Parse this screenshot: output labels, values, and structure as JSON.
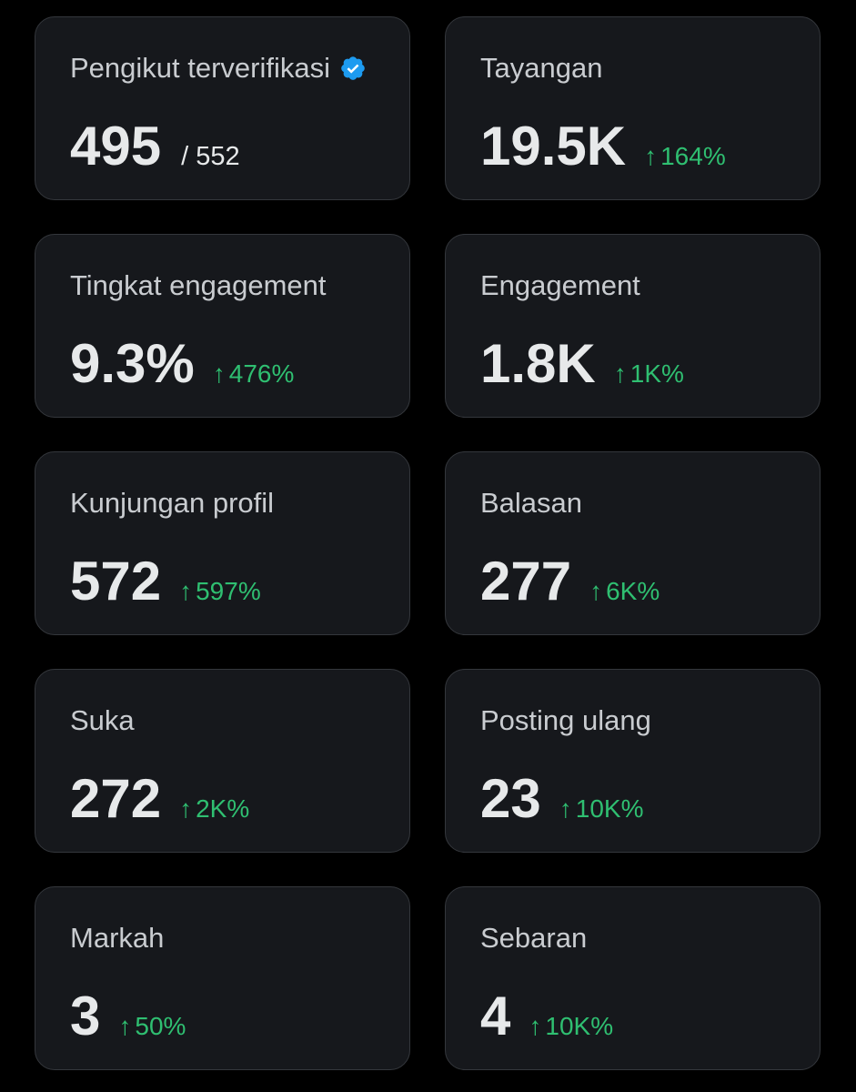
{
  "colors": {
    "background": "#000000",
    "card": "#16181c",
    "border": "#34373c",
    "positive": "#2fbf71",
    "verified": "#1d9bf0"
  },
  "cards": [
    {
      "label": "Pengikut terverifikasi",
      "value": "495",
      "total": "/ 552",
      "icon": "verified-badge-icon"
    },
    {
      "label": "Tayangan",
      "value": "19.5K",
      "change": "164%",
      "arrow": "↑"
    },
    {
      "label": "Tingkat engagement",
      "value": "9.3%",
      "change": "476%",
      "arrow": "↑"
    },
    {
      "label": "Engagement",
      "value": "1.8K",
      "change": "1K%",
      "arrow": "↑"
    },
    {
      "label": "Kunjungan profil",
      "value": "572",
      "change": "597%",
      "arrow": "↑"
    },
    {
      "label": "Balasan",
      "value": "277",
      "change": "6K%",
      "arrow": "↑"
    },
    {
      "label": "Suka",
      "value": "272",
      "change": "2K%",
      "arrow": "↑"
    },
    {
      "label": "Posting ulang",
      "value": "23",
      "change": "10K%",
      "arrow": "↑"
    },
    {
      "label": "Markah",
      "value": "3",
      "change": "50%",
      "arrow": "↑"
    },
    {
      "label": "Sebaran",
      "value": "4",
      "change": "10K%",
      "arrow": "↑"
    }
  ]
}
